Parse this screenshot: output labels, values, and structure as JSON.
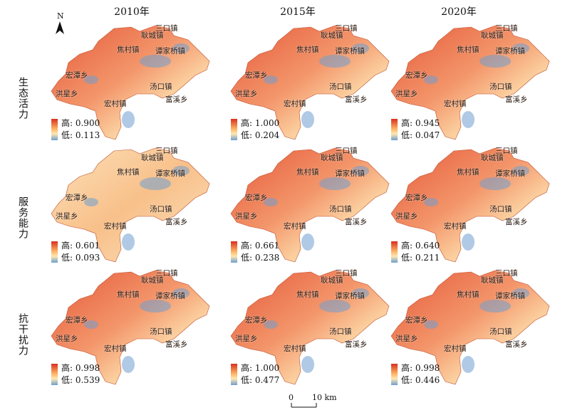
{
  "years": [
    "2010年",
    "2015年",
    "2020年"
  ],
  "rows": [
    "生态活力",
    "服务能力",
    "抗干扰力"
  ],
  "towns": [
    "耿城镇",
    "三口镇",
    "焦村镇",
    "谭家桥镇",
    "宏潭乡",
    "洪星乡",
    "汤口镇",
    "宏村镇",
    "富溪乡"
  ],
  "legends": [
    [
      {
        "hi": "高: 0.900",
        "lo": "低: 0.113"
      },
      {
        "hi": "高: 1.000",
        "lo": "低: 0.204"
      },
      {
        "hi": "高: 0.945",
        "lo": "低: 0.047"
      }
    ],
    [
      {
        "hi": "高: 0.601",
        "lo": "低: 0.093"
      },
      {
        "hi": "高: 0.661",
        "lo": "低: 0.238"
      },
      {
        "hi": "高: 0.640",
        "lo": "低: 0.211"
      }
    ],
    [
      {
        "hi": "高: 0.998",
        "lo": "低: 0.539"
      },
      {
        "hi": "高: 1.000",
        "lo": "低: 0.477"
      },
      {
        "hi": "高: 0.998",
        "lo": "低: 0.446"
      }
    ]
  ],
  "north_label": "N",
  "scale": {
    "zero": "0",
    "end": "10 km"
  },
  "colors": {
    "high": "#d7301f",
    "mid": "#fdae61",
    "light": "#fee8b0",
    "low": "#6f9fcf"
  }
}
